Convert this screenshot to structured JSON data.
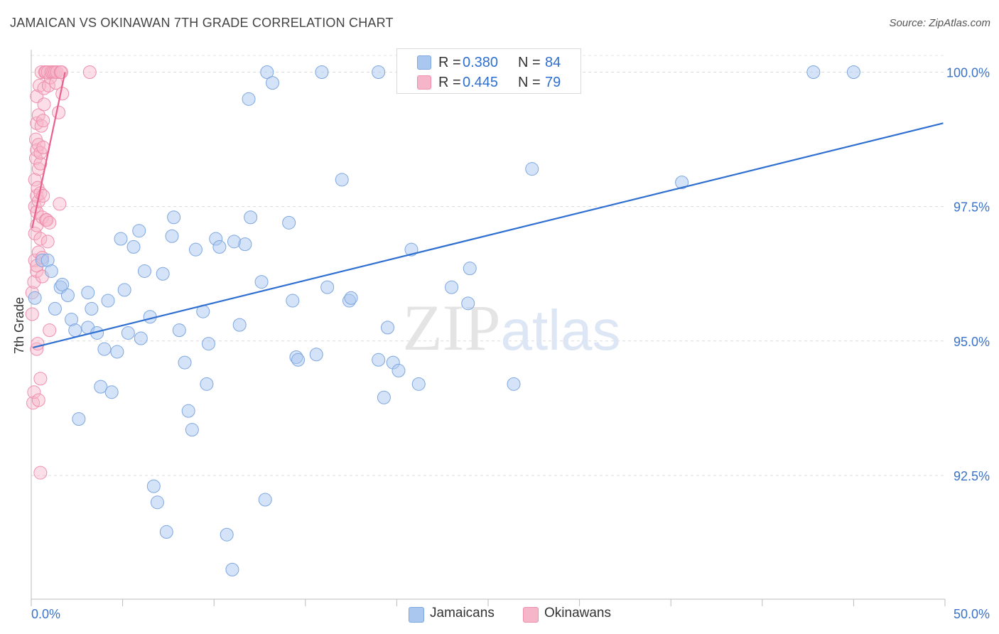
{
  "chart_data": {
    "type": "scatter",
    "title": "JAMAICAN VS OKINAWAN 7TH GRADE CORRELATION CHART",
    "source": "Source: ZipAtlas.com",
    "xlabel": "",
    "ylabel": "7th Grade",
    "xlim": [
      0,
      50
    ],
    "ylim": [
      90.2,
      100.35
    ],
    "x_tick_labels": [
      "0.0%",
      "50.0%"
    ],
    "y_ticks": [
      92.5,
      95.0,
      97.5,
      100.0
    ],
    "y_tick_labels": [
      "92.5%",
      "95.0%",
      "97.5%",
      "100.0%"
    ],
    "watermark": "ZIPatlas",
    "colors": {
      "jamaicans": "#a9c7ef",
      "jamaicans_stroke": "#7ea7df",
      "jamaicans_line": "#2e6fd1",
      "okinawans": "#f6b6c9",
      "okinawans_stroke": "#ee8fad",
      "okinawans_line": "#e8608c",
      "tick_text": "#3a72c8"
    },
    "legend": {
      "rows": [
        {
          "r_label": "R =",
          "r_value": "0.380",
          "n_label": "N =",
          "n_value": "84"
        },
        {
          "r_label": "R =",
          "r_value": "0.445",
          "n_label": "N =",
          "n_value": "79"
        }
      ]
    },
    "series": [
      {
        "name": "Jamaicans",
        "trend": {
          "x0": 0.1,
          "y0": 94.88,
          "x1": 49.9,
          "y1": 99.05
        },
        "points": [
          [
            0.2,
            95.8
          ],
          [
            0.6,
            96.5
          ],
          [
            0.9,
            96.5
          ],
          [
            1.1,
            96.3
          ],
          [
            1.3,
            95.6
          ],
          [
            1.6,
            96.0
          ],
          [
            1.7,
            96.05
          ],
          [
            2.0,
            95.85
          ],
          [
            2.2,
            95.4
          ],
          [
            2.4,
            95.2
          ],
          [
            2.6,
            93.55
          ],
          [
            3.1,
            95.9
          ],
          [
            3.1,
            95.25
          ],
          [
            3.3,
            95.6
          ],
          [
            3.6,
            95.15
          ],
          [
            3.8,
            94.15
          ],
          [
            4.0,
            94.85
          ],
          [
            4.2,
            95.75
          ],
          [
            4.4,
            94.05
          ],
          [
            4.7,
            94.8
          ],
          [
            4.9,
            96.9
          ],
          [
            5.1,
            95.95
          ],
          [
            5.3,
            95.15
          ],
          [
            5.6,
            96.75
          ],
          [
            5.9,
            97.05
          ],
          [
            6.0,
            95.05
          ],
          [
            6.2,
            96.3
          ],
          [
            6.5,
            95.45
          ],
          [
            6.7,
            92.3
          ],
          [
            6.9,
            92.0
          ],
          [
            7.2,
            96.25
          ],
          [
            7.4,
            91.45
          ],
          [
            7.7,
            96.95
          ],
          [
            7.8,
            97.3
          ],
          [
            8.1,
            95.2
          ],
          [
            8.4,
            94.6
          ],
          [
            8.6,
            93.7
          ],
          [
            8.8,
            93.35
          ],
          [
            9.0,
            96.7
          ],
          [
            9.4,
            95.55
          ],
          [
            9.6,
            94.2
          ],
          [
            9.7,
            94.95
          ],
          [
            10.1,
            96.9
          ],
          [
            10.3,
            96.75
          ],
          [
            10.7,
            91.4
          ],
          [
            11.0,
            90.75
          ],
          [
            11.1,
            96.85
          ],
          [
            11.4,
            95.3
          ],
          [
            11.7,
            96.8
          ],
          [
            11.9,
            99.5
          ],
          [
            12.0,
            97.3
          ],
          [
            12.6,
            96.1
          ],
          [
            12.8,
            92.05
          ],
          [
            12.9,
            100.0
          ],
          [
            13.2,
            99.8
          ],
          [
            14.1,
            97.2
          ],
          [
            14.3,
            95.75
          ],
          [
            14.5,
            94.7
          ],
          [
            14.6,
            94.65
          ],
          [
            15.6,
            94.75
          ],
          [
            15.9,
            100.0
          ],
          [
            16.2,
            96.0
          ],
          [
            17.0,
            98.0
          ],
          [
            17.4,
            95.75
          ],
          [
            17.5,
            95.8
          ],
          [
            19.0,
            100.0
          ],
          [
            19.0,
            94.65
          ],
          [
            19.3,
            93.95
          ],
          [
            19.5,
            95.25
          ],
          [
            19.8,
            94.6
          ],
          [
            20.1,
            94.45
          ],
          [
            20.8,
            96.7
          ],
          [
            21.2,
            94.2
          ],
          [
            23.0,
            96.0
          ],
          [
            23.9,
            95.7
          ],
          [
            24.0,
            96.35
          ],
          [
            26.4,
            94.2
          ],
          [
            26.5,
            100.0
          ],
          [
            27.4,
            98.2
          ],
          [
            28.8,
            100.0
          ],
          [
            35.6,
            97.95
          ],
          [
            42.8,
            100.0
          ],
          [
            45.0,
            100.0
          ]
        ]
      },
      {
        "name": "Okinawans",
        "trend": {
          "x0": 0.05,
          "y0": 97.1,
          "x1": 1.85,
          "y1": 100.0
        },
        "points": [
          [
            0.05,
            95.5
          ],
          [
            0.05,
            95.9
          ],
          [
            0.1,
            93.85
          ],
          [
            0.15,
            94.05
          ],
          [
            0.15,
            96.1
          ],
          [
            0.2,
            96.5
          ],
          [
            0.2,
            97.0
          ],
          [
            0.2,
            97.5
          ],
          [
            0.2,
            98.0
          ],
          [
            0.25,
            98.4
          ],
          [
            0.25,
            98.75
          ],
          [
            0.3,
            94.85
          ],
          [
            0.3,
            96.3
          ],
          [
            0.3,
            96.4
          ],
          [
            0.3,
            97.15
          ],
          [
            0.3,
            97.4
          ],
          [
            0.3,
            97.7
          ],
          [
            0.3,
            98.55
          ],
          [
            0.3,
            99.05
          ],
          [
            0.3,
            99.55
          ],
          [
            0.35,
            94.95
          ],
          [
            0.35,
            97.85
          ],
          [
            0.4,
            93.9
          ],
          [
            0.4,
            96.65
          ],
          [
            0.4,
            97.6
          ],
          [
            0.4,
            98.2
          ],
          [
            0.4,
            98.65
          ],
          [
            0.4,
            99.2
          ],
          [
            0.45,
            99.75
          ],
          [
            0.5,
            92.55
          ],
          [
            0.5,
            94.3
          ],
          [
            0.5,
            96.9
          ],
          [
            0.5,
            97.75
          ],
          [
            0.5,
            98.3
          ],
          [
            0.5,
            98.5
          ],
          [
            0.55,
            99.0
          ],
          [
            0.55,
            100.0
          ],
          [
            0.6,
            96.2
          ],
          [
            0.6,
            96.55
          ],
          [
            0.6,
            97.3
          ],
          [
            0.65,
            97.7
          ],
          [
            0.65,
            98.6
          ],
          [
            0.65,
            99.1
          ],
          [
            0.7,
            99.4
          ],
          [
            0.7,
            99.7
          ],
          [
            0.75,
            100.0
          ],
          [
            0.8,
            97.25
          ],
          [
            0.8,
            100.0
          ],
          [
            0.85,
            97.25
          ],
          [
            0.9,
            96.85
          ],
          [
            0.9,
            100.0
          ],
          [
            0.95,
            99.75
          ],
          [
            1.0,
            95.2
          ],
          [
            1.0,
            97.2
          ],
          [
            1.05,
            99.9
          ],
          [
            1.1,
            100.0
          ],
          [
            1.2,
            100.0
          ],
          [
            1.3,
            100.0
          ],
          [
            1.35,
            99.8
          ],
          [
            1.4,
            100.0
          ],
          [
            1.5,
            99.25
          ],
          [
            1.55,
            97.55
          ],
          [
            1.6,
            100.0
          ],
          [
            1.65,
            100.0
          ],
          [
            1.7,
            99.6
          ],
          [
            3.2,
            100.0
          ]
        ]
      }
    ],
    "legend_entries": [
      "Jamaicans",
      "Okinawans"
    ]
  }
}
